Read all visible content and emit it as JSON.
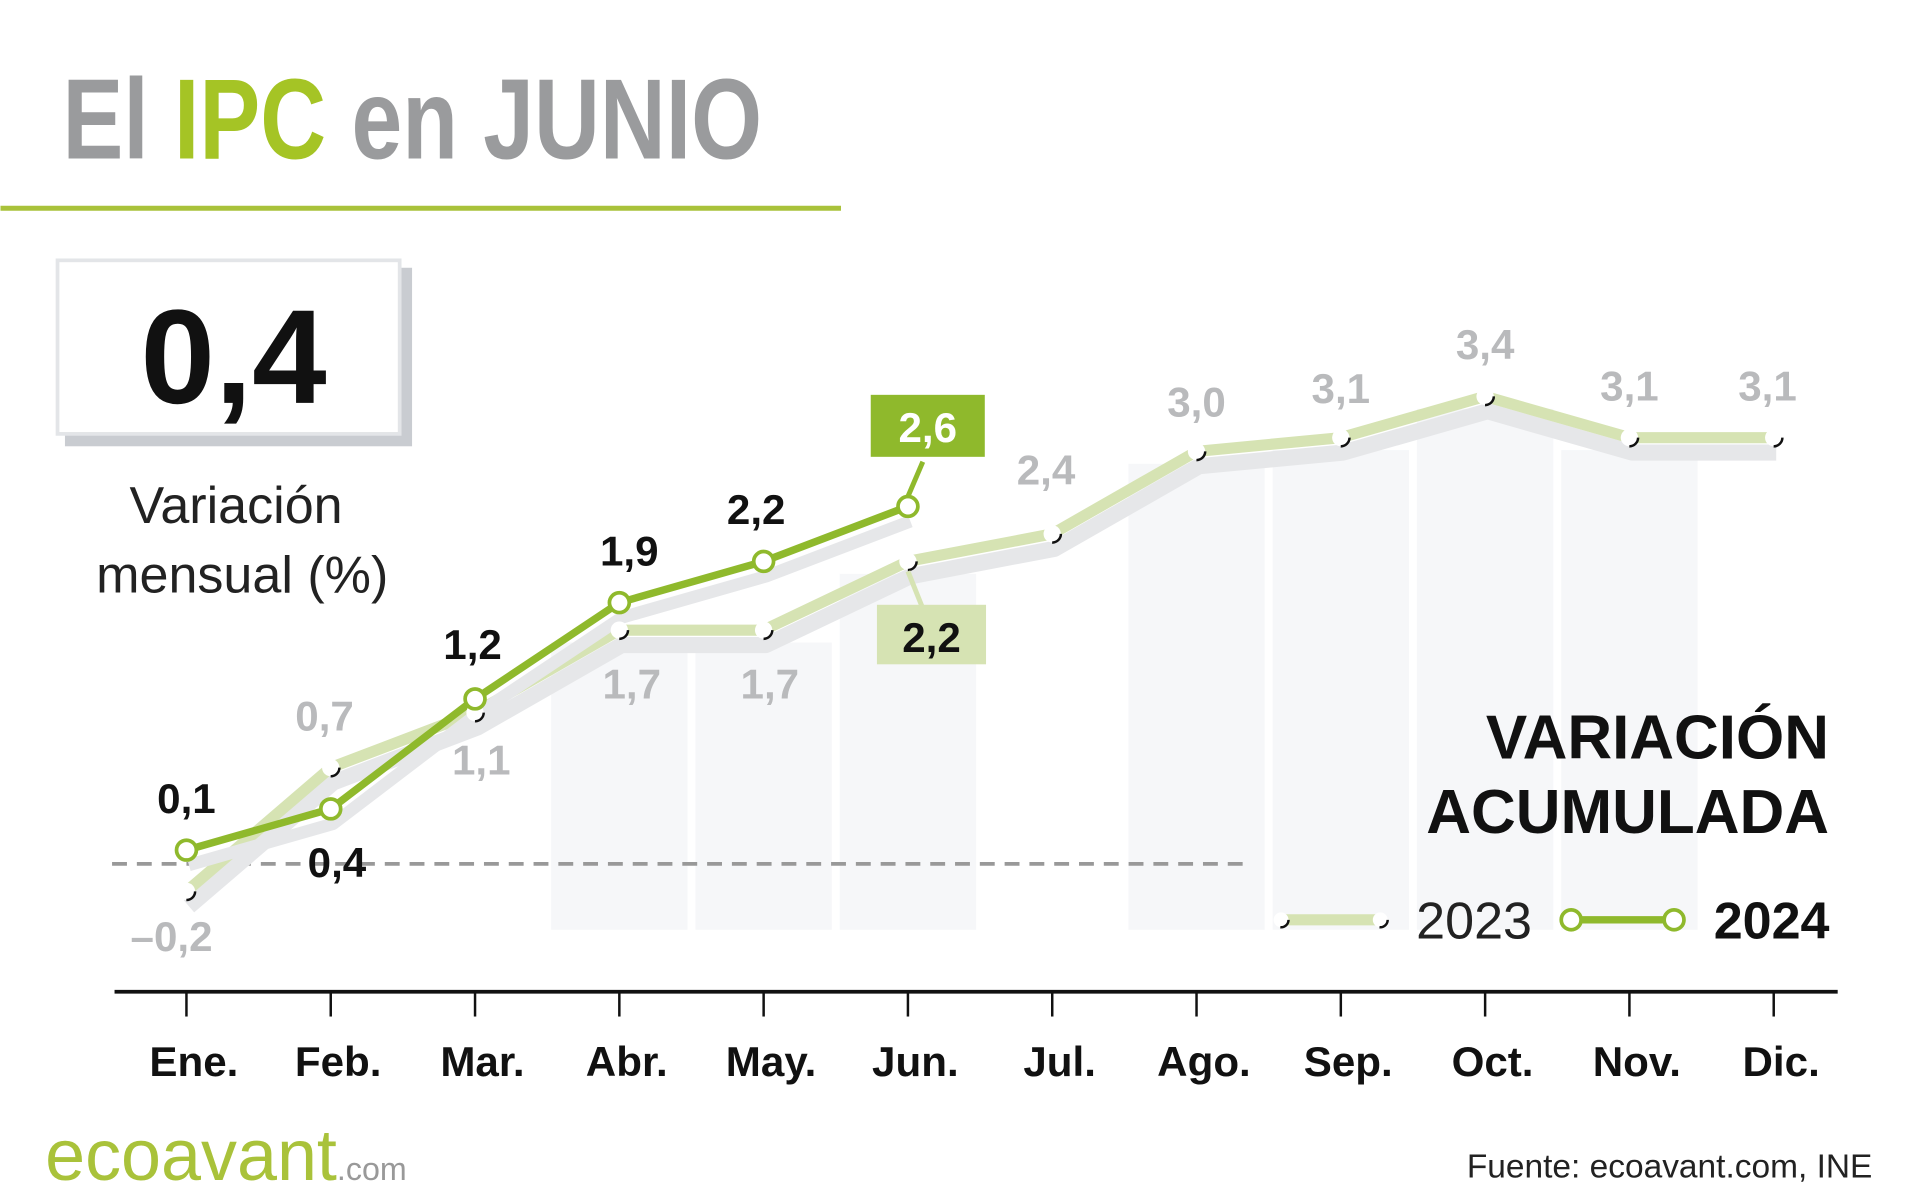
{
  "header": {
    "title_parts": [
      "El",
      "IPC",
      "en JUNIO"
    ]
  },
  "highlight_box": {
    "value": "0,4",
    "label_lines": [
      "Variación",
      "mensual (%)"
    ]
  },
  "chart_data": {
    "type": "line",
    "categories": [
      "Ene.",
      "Feb.",
      "Mar.",
      "Abr.",
      "May.",
      "Jun.",
      "Jul.",
      "Ago.",
      "Sep.",
      "Oct.",
      "Nov.",
      "Dic."
    ],
    "series": [
      {
        "name": "2023",
        "color": "#d6e3b3",
        "values": [
          -0.2,
          0.7,
          1.1,
          1.7,
          1.7,
          2.2,
          2.4,
          3.0,
          3.1,
          3.4,
          3.1,
          3.1
        ],
        "value_labels": [
          "–0,2",
          "0,7",
          "1,1",
          "1,7",
          "1,7",
          "2,2",
          "2,4",
          "3,0",
          "3,1",
          "3,4",
          "3,1",
          "3,1"
        ]
      },
      {
        "name": "2024",
        "color": "#8fb92c",
        "values": [
          0.1,
          0.4,
          1.2,
          1.9,
          2.2,
          2.6,
          null,
          null,
          null,
          null,
          null,
          null
        ],
        "value_labels": [
          "0,1",
          "0,4",
          "1,2",
          "1,9",
          "2,2",
          "2,6",
          null,
          null,
          null,
          null,
          null,
          null
        ]
      }
    ],
    "ylim": [
      -0.93,
      4.48
    ],
    "legend_title_lines": [
      "VARIACIÓN",
      "ACUMULADA"
    ]
  },
  "footer": {
    "logo": "ecoavant",
    "logo_suffix": ".com",
    "source": "Fuente: ecoavant.com, INE"
  }
}
